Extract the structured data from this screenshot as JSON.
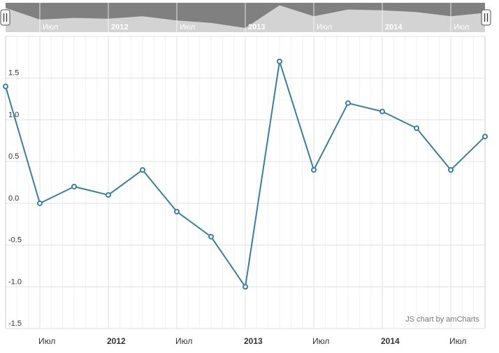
{
  "credit": "JS chart by amCharts",
  "colors": {
    "line": "#3a7e9e",
    "marker_fill": "#ffffff",
    "grid": "#e0e0e0",
    "minor_grid": "#f2f2f2",
    "axis_text": "#333333",
    "scrollbar_bg": "#d3d3d3",
    "scrollbar_area": "#808080",
    "scrollbar_text": "#ffffff",
    "credit_text": "#777777"
  },
  "chart_data": {
    "type": "line",
    "series": [
      {
        "values": [
          {
            "x": "2011-04",
            "y": 1.4
          },
          {
            "x": "2011-07",
            "y": 0.0
          },
          {
            "x": "2011-10",
            "y": 0.2
          },
          {
            "x": "2012-01",
            "y": 0.1
          },
          {
            "x": "2012-04",
            "y": 0.4
          },
          {
            "x": "2012-07",
            "y": -0.1
          },
          {
            "x": "2012-10",
            "y": -0.4
          },
          {
            "x": "2013-01",
            "y": -1.0
          },
          {
            "x": "2013-04",
            "y": 1.7
          },
          {
            "x": "2013-07",
            "y": 0.4
          },
          {
            "x": "2013-10",
            "y": 1.2
          },
          {
            "x": "2014-01",
            "y": 1.1
          },
          {
            "x": "2014-04",
            "y": 0.9
          },
          {
            "x": "2014-07",
            "y": 0.4
          },
          {
            "x": "2014-10",
            "y": 0.8
          }
        ]
      }
    ],
    "y_ticks": [
      "-1.5",
      "-1.0",
      "-0.5",
      "0.0",
      "0.5",
      "1.0",
      "1.5"
    ],
    "ylim": [
      -1.5,
      2.0
    ],
    "x_ticks": [
      {
        "label": "Июл",
        "date": "2011-07",
        "bold": false
      },
      {
        "label": "2012",
        "date": "2012-01",
        "bold": true
      },
      {
        "label": "Июл",
        "date": "2012-07",
        "bold": false
      },
      {
        "label": "2013",
        "date": "2013-01",
        "bold": true
      },
      {
        "label": "Июл",
        "date": "2013-07",
        "bold": false
      },
      {
        "label": "2014",
        "date": "2014-01",
        "bold": true
      },
      {
        "label": "Июл",
        "date": "2014-07",
        "bold": false
      }
    ],
    "xlim": [
      "2011-04",
      "2014-10"
    ],
    "grid": true,
    "scrollbar": true
  }
}
